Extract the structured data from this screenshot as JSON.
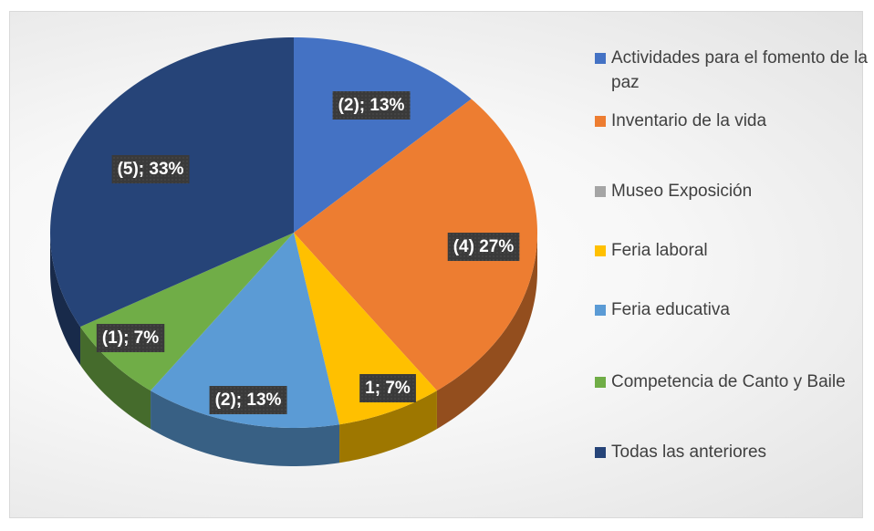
{
  "chart_data": {
    "type": "pie",
    "categories": [
      "Actividades para el fomento de la paz",
      "Inventario de la vida",
      "Museo Exposición",
      "Feria laboral",
      "Feria educativa",
      "Competencia de Canto y Baile",
      "Todas las anteriores"
    ],
    "values": [
      13,
      27,
      0,
      7,
      13,
      7,
      33
    ],
    "value_labels": [
      "(2); 13%",
      "(4) 27%",
      null,
      "1; 7%",
      "(2); 13%",
      "(1); 7%",
      "(5); 33%"
    ],
    "colors": [
      "#4472c4",
      "#ed7d31",
      "#a5a5a5",
      "#ffc000",
      "#5b9bd5",
      "#70ad47",
      "#264478"
    ],
    "legend": "right"
  }
}
